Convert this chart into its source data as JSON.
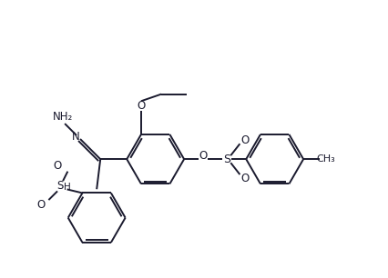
{
  "bg_color": "#ffffff",
  "line_color": "#1a1a2e",
  "bond_width": 1.4,
  "font_size": 8.5,
  "figsize": [
    4.26,
    3.06
  ],
  "dpi": 100,
  "xlim": [
    0,
    10.5
  ],
  "ylim": [
    0,
    7.5
  ]
}
